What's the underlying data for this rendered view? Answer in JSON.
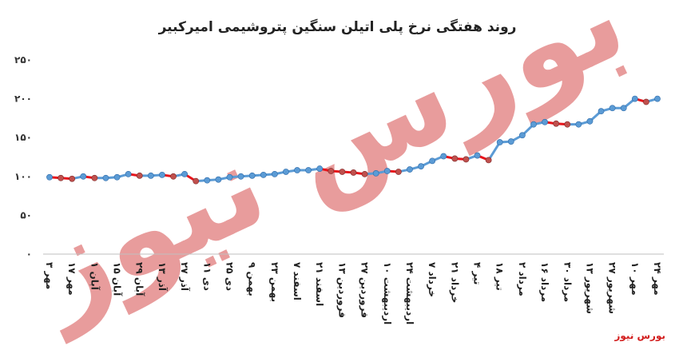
{
  "source_label": "بورس نیوز",
  "watermark": {
    "text": "بورس نیوز",
    "kind": "logo"
  },
  "colors": {
    "line": "#5b9bd5",
    "decline": "#e8141b",
    "decline_marker": "#c0504d",
    "watermark": "#e48b8b"
  },
  "chart_data": {
    "type": "line",
    "title": "روند هفتگی نرخ پلی اتیلن سنگین پتروشیمی امیرکبیر",
    "xlabel": "",
    "ylabel": "",
    "ylim": [
      0,
      250
    ],
    "yticks": [
      "۰",
      "۵۰",
      "۱۰۰",
      "۱۵۰",
      "۲۰۰",
      "۲۵۰"
    ],
    "grid": false,
    "categories": [
      "۳ مهر",
      "",
      "۱۷ مهر",
      "",
      "۱ آبان",
      "",
      "۱۵ آبان",
      "",
      "۲۹ آبان",
      "",
      "۱۳ آذر",
      "",
      "۲۷ آذر",
      "",
      "۱۱ دی",
      "",
      "۲۵ دی",
      "",
      "۹ بهمن",
      "",
      "۲۳ بهمن",
      "",
      "۷ اسفند",
      "",
      "۲۱ اسفند",
      "",
      "۱۳ فروردین",
      "",
      "۲۷ فروردین",
      "",
      "۱۰ اردیبهشت",
      "",
      "۲۴ اردیبهشت",
      "",
      "۷ خرداد",
      "",
      "۲۱ خرداد",
      "",
      "۴ تیر",
      "",
      "۱۸ تیر",
      "",
      "۲ مرداد",
      "",
      "۱۶ مرداد",
      "",
      "۳۰ مرداد",
      "",
      "۱۳ شهریور",
      "",
      "۲۷ شهریور",
      "",
      "۱۰ مهر",
      "",
      "۲۴ مهر"
    ],
    "values": [
      99,
      98,
      97,
      100,
      98,
      98,
      99,
      103,
      101,
      101,
      102,
      100,
      103,
      94,
      95,
      96,
      99,
      100,
      101,
      102,
      103,
      106,
      108,
      108,
      110,
      107,
      106,
      105,
      103,
      104,
      107,
      106,
      109,
      113,
      120,
      126,
      123,
      122,
      127,
      121,
      144,
      145,
      153,
      167,
      170,
      168,
      167,
      167,
      171,
      184,
      188,
      188,
      200,
      196,
      200
    ]
  }
}
